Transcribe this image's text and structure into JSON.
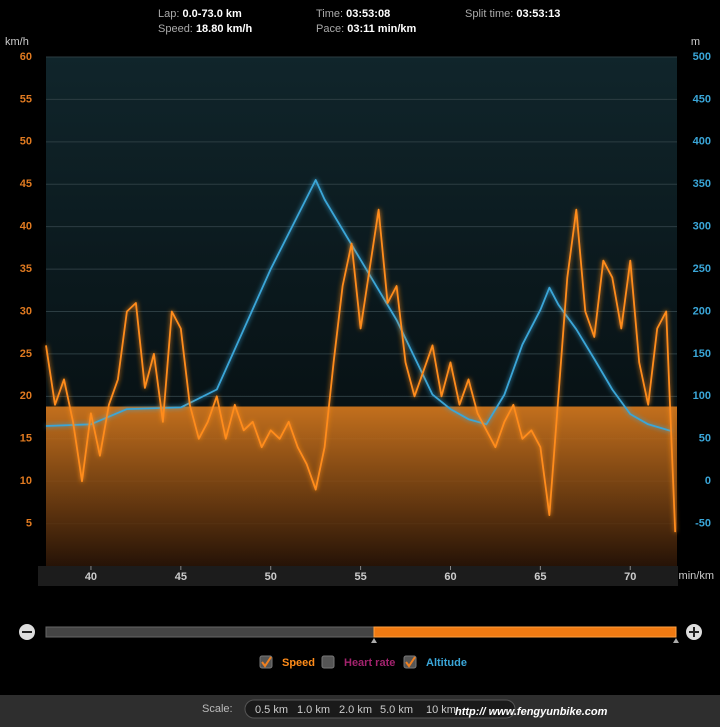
{
  "header": {
    "lap_label": "Lap:",
    "lap": "0.0-73.0 km",
    "speed_label": "Speed:",
    "speed": "18.80 km/h",
    "time_label": "Time:",
    "time": "03:53:08",
    "pace_label": "Pace:",
    "pace": "03:11 min/km",
    "split_label": "Split time:",
    "split": "03:53:13"
  },
  "chart_data": {
    "type": "line",
    "ylabel": "km/h",
    "y2label": "m",
    "xlabel": "min/km",
    "xlim": [
      37.5,
      72.6
    ],
    "xticks": [
      40,
      45,
      50,
      55,
      60,
      65,
      70
    ],
    "ylim": [
      0,
      60
    ],
    "yticks": [
      5,
      10,
      15,
      20,
      25,
      30,
      35,
      40,
      45,
      50,
      55,
      60
    ],
    "y2lim": [
      -100,
      500
    ],
    "y2ticks": [
      -50,
      0,
      50,
      100,
      150,
      200,
      250,
      300,
      350,
      400,
      450,
      500
    ],
    "grid": true,
    "average_speed": 18.8,
    "series": [
      {
        "name": "Speed",
        "color": "#ff8c1a",
        "x": [
          37.5,
          38,
          38.5,
          39,
          39.5,
          40,
          40.5,
          41,
          41.5,
          42,
          42.5,
          43,
          43.5,
          44,
          44.5,
          45,
          45.5,
          46,
          46.5,
          47,
          47.5,
          48,
          48.5,
          49,
          49.5,
          50,
          50.5,
          51,
          51.5,
          52,
          52.5,
          53,
          53.5,
          54,
          54.5,
          55,
          55.5,
          56,
          56.5,
          57,
          57.5,
          58,
          58.5,
          59,
          59.5,
          60,
          60.5,
          61,
          61.5,
          62,
          62.5,
          63,
          63.5,
          64,
          64.5,
          65,
          65.5,
          66,
          66.5,
          67,
          67.5,
          68,
          68.5,
          69,
          69.5,
          70,
          70.5,
          71,
          71.5,
          72,
          72.5
        ],
        "values": [
          26,
          19,
          22,
          17,
          10,
          18,
          13,
          19,
          22,
          30,
          31,
          21,
          25,
          17,
          30,
          28,
          19,
          15,
          17,
          20,
          15,
          19,
          16,
          17,
          14,
          16,
          15,
          17,
          14,
          12,
          9,
          14,
          24,
          33,
          38,
          28,
          35,
          42,
          31,
          33,
          24,
          20,
          23,
          26,
          20,
          24,
          19,
          22,
          18,
          16,
          14,
          17,
          19,
          15,
          16,
          14,
          6,
          20,
          34,
          42,
          30,
          27,
          36,
          34,
          28,
          36,
          24,
          19,
          28,
          30,
          4
        ]
      },
      {
        "name": "Altitude",
        "color": "#3aa6d8",
        "axis": "y2",
        "x": [
          37.5,
          40,
          42,
          45,
          47,
          50,
          52.5,
          53,
          55,
          57,
          59,
          60,
          61,
          62,
          63,
          64,
          65,
          65.5,
          66,
          67,
          68,
          69,
          70,
          71,
          72.3
        ],
        "values": [
          65,
          67,
          85,
          87,
          108,
          250,
          355,
          332,
          261,
          190,
          102,
          85,
          73,
          67,
          102,
          161,
          202,
          228,
          208,
          179,
          144,
          108,
          79,
          67,
          59
        ]
      }
    ]
  },
  "legend": [
    {
      "label": "Speed",
      "checked": true,
      "color": "#ff8c1a"
    },
    {
      "label": "Heart rate",
      "checked": false,
      "color": "#a3236e"
    },
    {
      "label": "Altitude",
      "checked": true,
      "color": "#3aa6d8"
    }
  ],
  "scale": {
    "label": "Scale:",
    "options": [
      "0.5 km",
      "1.0 km",
      "2.0 km",
      "5.0 km",
      "10 km"
    ]
  },
  "watermark": "http:// www.fengyunbike.com"
}
